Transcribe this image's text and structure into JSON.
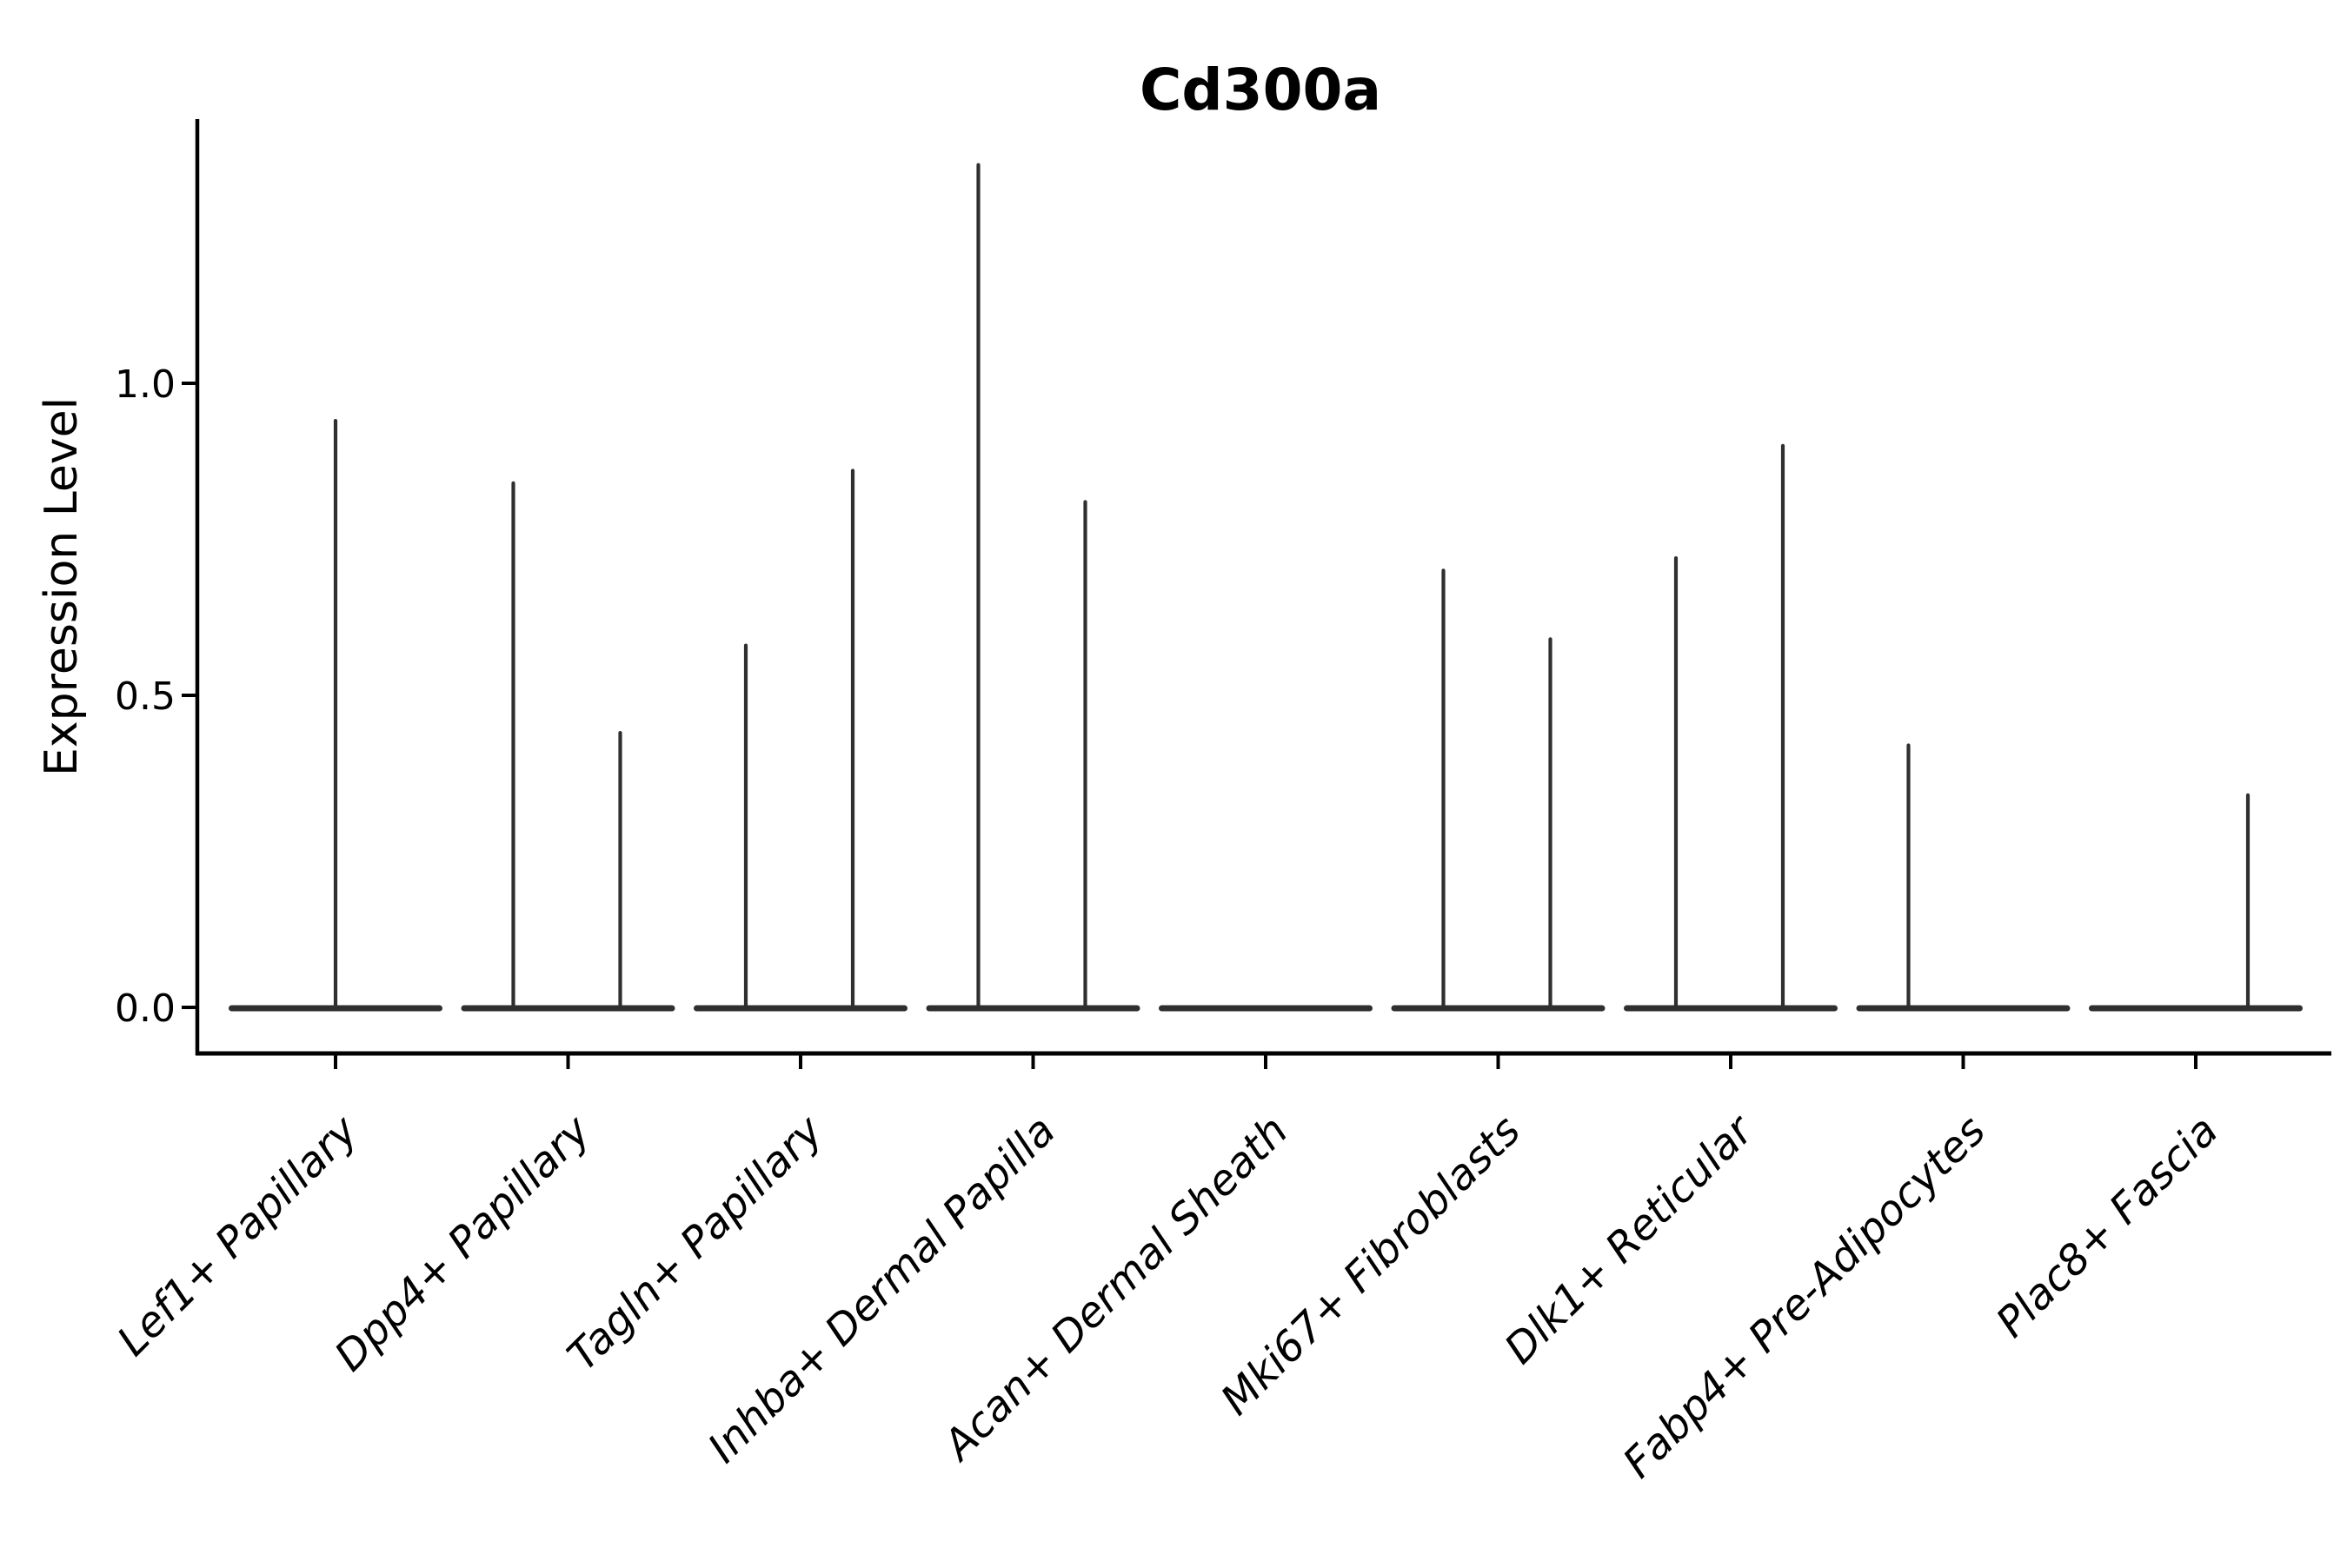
{
  "chart_data": {
    "type": "violin",
    "title": "Cd300a",
    "xlabel": "",
    "ylabel": "Expression Level",
    "ylim": [
      -0.07,
      1.42
    ],
    "grid": false,
    "legend": null,
    "yticks": [
      {
        "value": 0.0,
        "label": "0.0"
      },
      {
        "value": 0.5,
        "label": "0.5"
      },
      {
        "value": 1.0,
        "label": "1.0"
      }
    ],
    "categories": [
      "Lef1+ Papillary",
      "Dpp4+ Papillary",
      "Tagln+ Papillary",
      "Inhba+ Dermal Papilla",
      "Acan+ Dermal Sheath",
      "Mki67+ Fibroblasts",
      "Dlk1+ Reticular",
      "Fabp4+ Pre-Adipocytes",
      "Plac8+ Fascia"
    ],
    "series": [
      {
        "category": "Lef1+ Papillary",
        "bulk_at": 0.0,
        "spikes": [
          {
            "side": "center",
            "max": 0.94
          }
        ]
      },
      {
        "category": "Dpp4+ Papillary",
        "bulk_at": 0.0,
        "spikes": [
          {
            "side": "left",
            "max": 0.84
          },
          {
            "side": "right",
            "max": 0.44
          }
        ]
      },
      {
        "category": "Tagln+ Papillary",
        "bulk_at": 0.0,
        "spikes": [
          {
            "side": "left",
            "max": 0.58
          },
          {
            "side": "right",
            "max": 0.86
          }
        ]
      },
      {
        "category": "Inhba+ Dermal Papilla",
        "bulk_at": 0.0,
        "spikes": [
          {
            "side": "left",
            "max": 1.35
          },
          {
            "side": "right",
            "max": 0.81
          }
        ]
      },
      {
        "category": "Acan+ Dermal Sheath",
        "bulk_at": 0.0,
        "spikes": []
      },
      {
        "category": "Mki67+ Fibroblasts",
        "bulk_at": 0.0,
        "spikes": [
          {
            "side": "left",
            "max": 0.7
          },
          {
            "side": "right",
            "max": 0.59
          }
        ]
      },
      {
        "category": "Dlk1+ Reticular",
        "bulk_at": 0.0,
        "spikes": [
          {
            "side": "left",
            "max": 0.72
          },
          {
            "side": "right",
            "max": 0.9
          }
        ]
      },
      {
        "category": "Fabp4+ Pre-Adipocytes",
        "bulk_at": 0.0,
        "spikes": [
          {
            "side": "left",
            "max": 0.42
          }
        ]
      },
      {
        "category": "Plac8+ Fascia",
        "bulk_at": 0.0,
        "spikes": [
          {
            "side": "right",
            "max": 0.34
          }
        ]
      }
    ],
    "colors": {
      "violin": "#2f2f2f",
      "axis": "#000000",
      "text": "#000000",
      "background": "#ffffff"
    }
  }
}
